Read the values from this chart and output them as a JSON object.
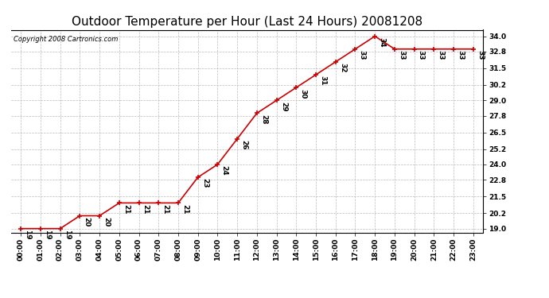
{
  "title": "Outdoor Temperature per Hour (Last 24 Hours) 20081208",
  "copyright": "Copyright 2008 Cartronics.com",
  "hours": [
    "00:00",
    "01:00",
    "02:00",
    "03:00",
    "04:00",
    "05:00",
    "06:00",
    "07:00",
    "08:00",
    "09:00",
    "10:00",
    "11:00",
    "12:00",
    "13:00",
    "14:00",
    "15:00",
    "16:00",
    "17:00",
    "18:00",
    "19:00",
    "20:00",
    "21:00",
    "22:00",
    "23:00"
  ],
  "temps": [
    19,
    19,
    19,
    20,
    20,
    21,
    21,
    21,
    21,
    23,
    24,
    26,
    28,
    29,
    30,
    31,
    32,
    33,
    34,
    33,
    33,
    33,
    33,
    33
  ],
  "line_color": "#cc0000",
  "marker_color": "#cc0000",
  "bg_color": "#ffffff",
  "grid_color": "#bbbbbb",
  "yticks": [
    19.0,
    20.2,
    21.5,
    22.8,
    24.0,
    25.2,
    26.5,
    27.8,
    29.0,
    30.2,
    31.5,
    32.8,
    34.0
  ],
  "ylim": [
    18.7,
    34.5
  ],
  "title_fontsize": 11,
  "label_fontsize": 6.5,
  "copyright_fontsize": 6,
  "annot_fontsize": 6.5
}
